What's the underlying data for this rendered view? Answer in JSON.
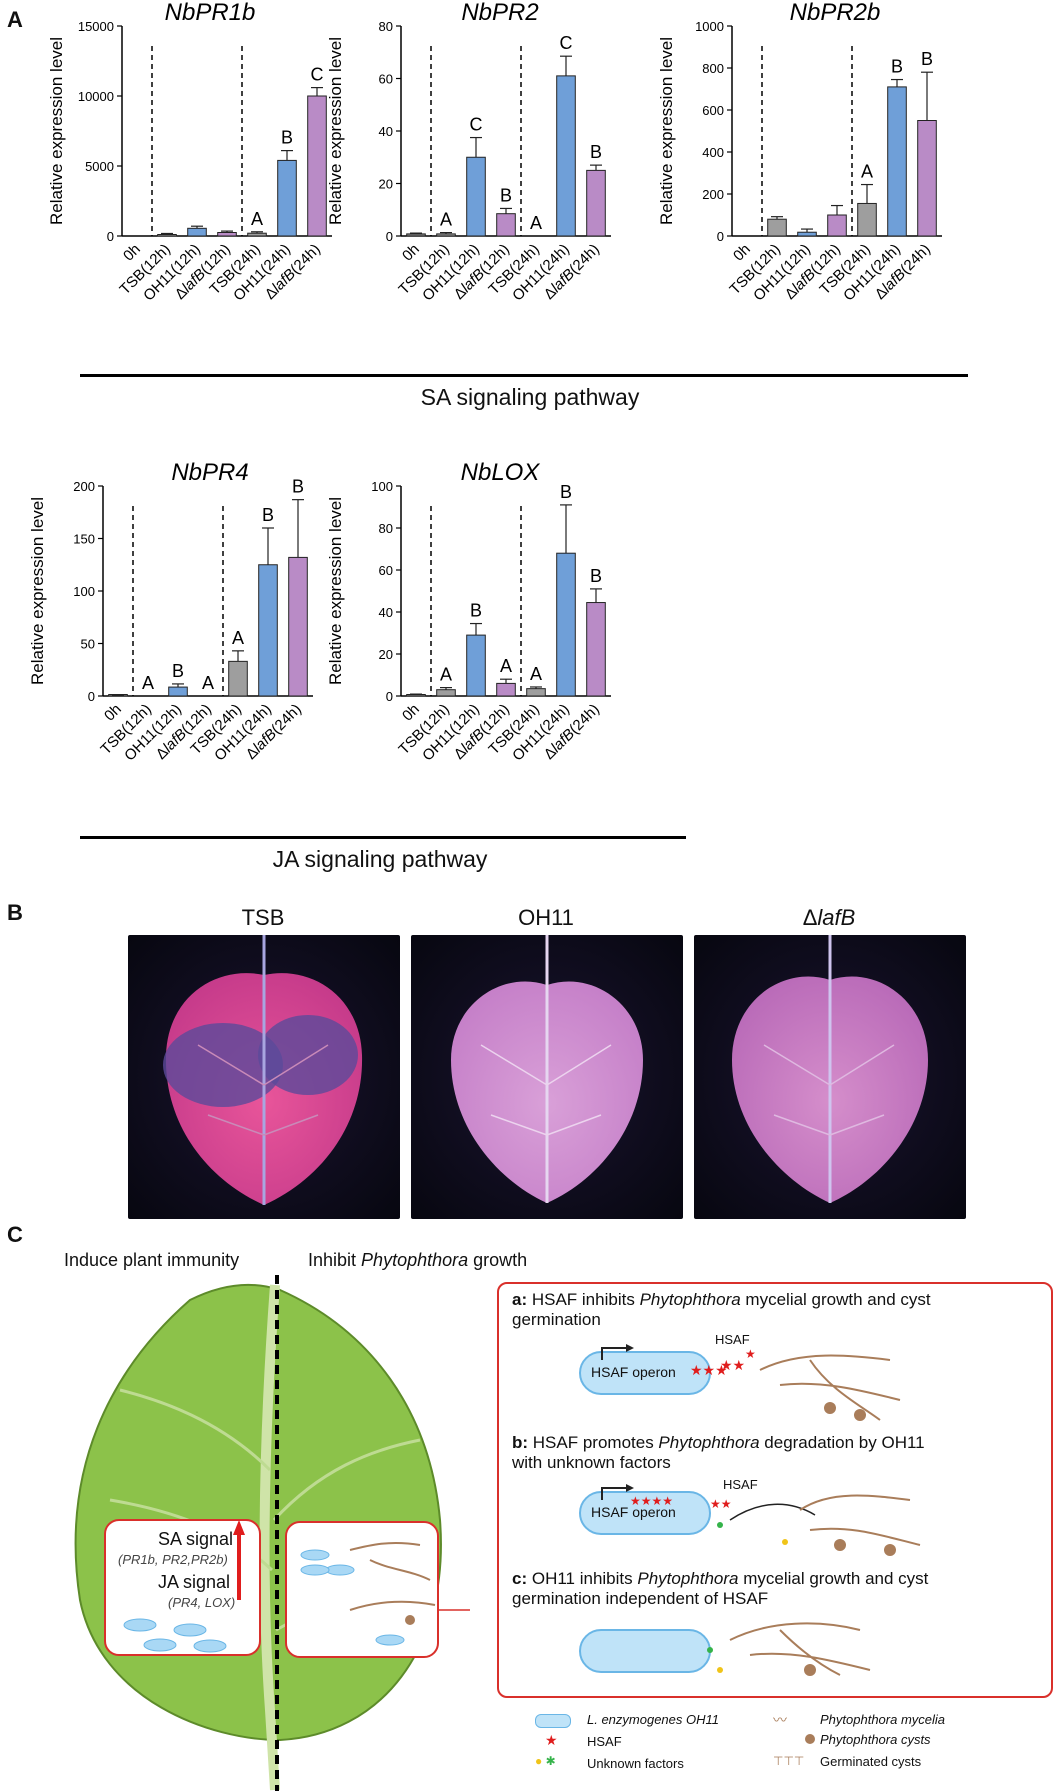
{
  "panels": {
    "a": "A",
    "b": "B",
    "c": "C"
  },
  "ylabel": "Relative expression level",
  "categories": [
    "0h",
    "TSB(12h)",
    "OH11(12h)",
    "ΔlafB(12h)",
    "TSB(24h)",
    "OH11(24h)",
    "ΔlafB(24h)"
  ],
  "colors": {
    "gray": "#9e9e9e",
    "blue": "#6f9fd8",
    "purple": "#b98bc6",
    "zero": "#888888"
  },
  "chart_data": [
    {
      "type": "bar",
      "title": "NbPR1b",
      "ylim": [
        0,
        15000
      ],
      "yticks": [
        0,
        5000,
        10000,
        15000
      ],
      "values": [
        0,
        100,
        550,
        250,
        200,
        5400,
        10000
      ],
      "errors": [
        0,
        80,
        150,
        100,
        100,
        700,
        600
      ],
      "labels": [
        "",
        "",
        "",
        "",
        "A",
        "B",
        "C"
      ]
    },
    {
      "type": "bar",
      "title": "NbPR2",
      "ylim": [
        0,
        80
      ],
      "yticks": [
        0,
        20,
        40,
        60,
        80
      ],
      "values": [
        0.8,
        0.8,
        30,
        8.5,
        0,
        61,
        25
      ],
      "errors": [
        0.3,
        0.5,
        7.5,
        2,
        0,
        7.5,
        2
      ],
      "labels": [
        "",
        "A",
        "C",
        "B",
        "A",
        "C",
        "B"
      ]
    },
    {
      "type": "bar",
      "title": "NbPR2b",
      "ylim": [
        0,
        1000
      ],
      "yticks": [
        0,
        200,
        400,
        600,
        800,
        1000
      ],
      "values": [
        0,
        80,
        18,
        100,
        155,
        710,
        550
      ],
      "errors": [
        0,
        12,
        15,
        45,
        90,
        35,
        230
      ],
      "labels": [
        "",
        "",
        "",
        "",
        "A",
        "B",
        "B"
      ]
    },
    {
      "type": "bar",
      "title": "NbPR4",
      "ylim": [
        0,
        200
      ],
      "yticks": [
        0,
        50,
        100,
        150,
        200
      ],
      "values": [
        0.5,
        0,
        8.5,
        0,
        33,
        125,
        132
      ],
      "errors": [
        0.3,
        0,
        3,
        0,
        10,
        35,
        55
      ],
      "labels": [
        "",
        "A",
        "B",
        "A",
        "A",
        "B",
        "B"
      ]
    },
    {
      "type": "bar",
      "title": "NbLOX",
      "ylim": [
        0,
        100
      ],
      "yticks": [
        0,
        20,
        40,
        60,
        80,
        100
      ],
      "values": [
        0.6,
        3,
        29,
        6,
        3.5,
        68,
        44.5
      ],
      "errors": [
        0.3,
        1,
        5.5,
        2,
        0.8,
        23,
        6.5
      ],
      "labels": [
        "",
        "A",
        "B",
        "A",
        "A",
        "B",
        "B"
      ]
    }
  ],
  "pathways": {
    "sa": "SA signaling pathway",
    "ja": "JA signaling pathway"
  },
  "leaves": {
    "tsb": "TSB",
    "oh11": "OH11",
    "lafb_prefix": "Δ",
    "lafb": "lafB"
  },
  "model": {
    "induce": "Induce plant immunity",
    "inhibit_prefix": "Inhibit ",
    "inhibit_italic": "Phytophthora",
    "inhibit_suffix": " growth",
    "sa_signal": "SA signal",
    "sa_genes": "(PR1b, PR2,PR2b)",
    "ja_signal": "JA signal",
    "ja_genes": "(PR4, LOX)",
    "a_key": "a:",
    "a_text1": " HSAF inhibits ",
    "a_ital": "Phytophthora",
    "a_text2": " mycelial growth and cyst",
    "a_line2": "germination",
    "b_key": "b:",
    "b_text1": " HSAF promotes ",
    "b_ital": "Phytophthora",
    "b_text2": " degradation by OH11",
    "b_line2": "with unknown factors",
    "c_key": "c:",
    "c_text1": " OH11 inhibits ",
    "c_ital": "Phytophthora",
    "c_text2": " mycelial growth and cyst",
    "c_line2": "germination independent of HSAF",
    "hsaf": "HSAF",
    "operon": "HSAF operon",
    "legend": {
      "bacteria": "L. enzymogenes OH11",
      "hsaf": "HSAF",
      "unknown": "Unknown factors",
      "mycelia": "Phytophthora mycelia",
      "cysts": "Phytophthora cysts",
      "germinated": "Germinated cysts"
    }
  }
}
